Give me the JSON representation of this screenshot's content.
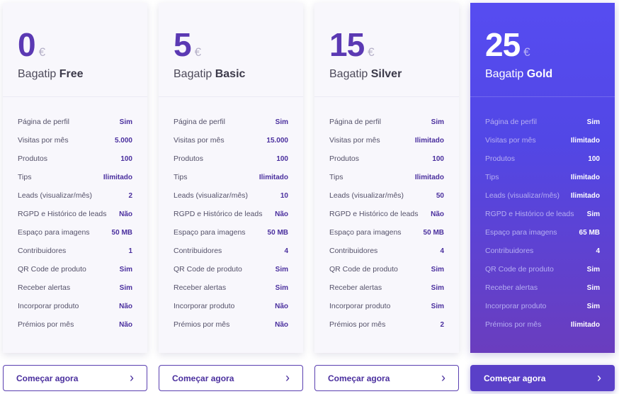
{
  "plans": [
    {
      "price": "0",
      "currency": "€",
      "name_prefix": "Bagatip",
      "name": "Free",
      "cta_label": "Começar agora",
      "cta_icon": "chevron-right-icon",
      "features": [
        {
          "label": "Página de perfil",
          "value": "Sim"
        },
        {
          "label": "Visitas por mês",
          "value": "5.000"
        },
        {
          "label": "Produtos",
          "value": "100"
        },
        {
          "label": "Tips",
          "value": "Ilimitado"
        },
        {
          "label": "Leads (visualizar/mês)",
          "value": "2"
        },
        {
          "label": "RGPD e Histórico de leads",
          "value": "Não"
        },
        {
          "label": "Espaço para imagens",
          "value": "50 MB"
        },
        {
          "label": "Contribuidores",
          "value": "1"
        },
        {
          "label": "QR Code de produto",
          "value": "Sim"
        },
        {
          "label": "Receber alertas",
          "value": "Sim"
        },
        {
          "label": "Incorporar produto",
          "value": "Não"
        },
        {
          "label": "Prémios por mês",
          "value": "Não"
        }
      ]
    },
    {
      "price": "5",
      "currency": "€",
      "name_prefix": "Bagatip",
      "name": "Basic",
      "cta_label": "Começar agora",
      "cta_icon": "chevron-right-icon",
      "features": [
        {
          "label": "Página de perfil",
          "value": "Sim"
        },
        {
          "label": "Visitas por mês",
          "value": "15.000"
        },
        {
          "label": "Produtos",
          "value": "100"
        },
        {
          "label": "Tips",
          "value": "Ilimitado"
        },
        {
          "label": "Leads (visualizar/mês)",
          "value": "10"
        },
        {
          "label": "RGPD e Histórico de leads",
          "value": "Não"
        },
        {
          "label": "Espaço para imagens",
          "value": "50 MB"
        },
        {
          "label": "Contribuidores",
          "value": "4"
        },
        {
          "label": "QR Code de produto",
          "value": "Sim"
        },
        {
          "label": "Receber alertas",
          "value": "Sim"
        },
        {
          "label": "Incorporar produto",
          "value": "Não"
        },
        {
          "label": "Prémios por mês",
          "value": "Não"
        }
      ]
    },
    {
      "price": "15",
      "currency": "€",
      "name_prefix": "Bagatip",
      "name": "Silver",
      "cta_label": "Começar agora",
      "cta_icon": "chevron-right-icon",
      "features": [
        {
          "label": "Página de perfil",
          "value": "Sim"
        },
        {
          "label": "Visitas por mês",
          "value": "Ilimitado"
        },
        {
          "label": "Produtos",
          "value": "100"
        },
        {
          "label": "Tips",
          "value": "Ilimitado"
        },
        {
          "label": "Leads (visualizar/mês)",
          "value": "50"
        },
        {
          "label": "RGPD e Histórico de leads",
          "value": "Não"
        },
        {
          "label": "Espaço para imagens",
          "value": "50 MB"
        },
        {
          "label": "Contribuidores",
          "value": "4"
        },
        {
          "label": "QR Code de produto",
          "value": "Sim"
        },
        {
          "label": "Receber alertas",
          "value": "Sim"
        },
        {
          "label": "Incorporar produto",
          "value": "Sim"
        },
        {
          "label": "Prémios por mês",
          "value": "2"
        }
      ]
    },
    {
      "price": "25",
      "currency": "€",
      "name_prefix": "Bagatip",
      "name": "Gold",
      "cta_label": "Começar agora",
      "cta_icon": "chevron-right-icon",
      "features": [
        {
          "label": "Página de perfil",
          "value": "Sim"
        },
        {
          "label": "Visitas por mês",
          "value": "Ilimitado"
        },
        {
          "label": "Produtos",
          "value": "100"
        },
        {
          "label": "Tips",
          "value": "Ilimitado"
        },
        {
          "label": "Leads (visualizar/mês)",
          "value": "Ilimitado"
        },
        {
          "label": "RGPD e Histórico de leads",
          "value": "Sim"
        },
        {
          "label": "Espaço para imagens",
          "value": "65 MB"
        },
        {
          "label": "Contribuidores",
          "value": "4"
        },
        {
          "label": "QR Code de produto",
          "value": "Sim"
        },
        {
          "label": "Receber alertas",
          "value": "Sim"
        },
        {
          "label": "Incorporar produto",
          "value": "Sim"
        },
        {
          "label": "Prémios por mês",
          "value": "Ilimitado"
        }
      ]
    }
  ],
  "colors": {
    "accent": "#5b39b3",
    "featured_gradient_top": "#564cf1",
    "featured_gradient_bottom": "#6a3dbe",
    "card_background": "#f8f7fc"
  }
}
